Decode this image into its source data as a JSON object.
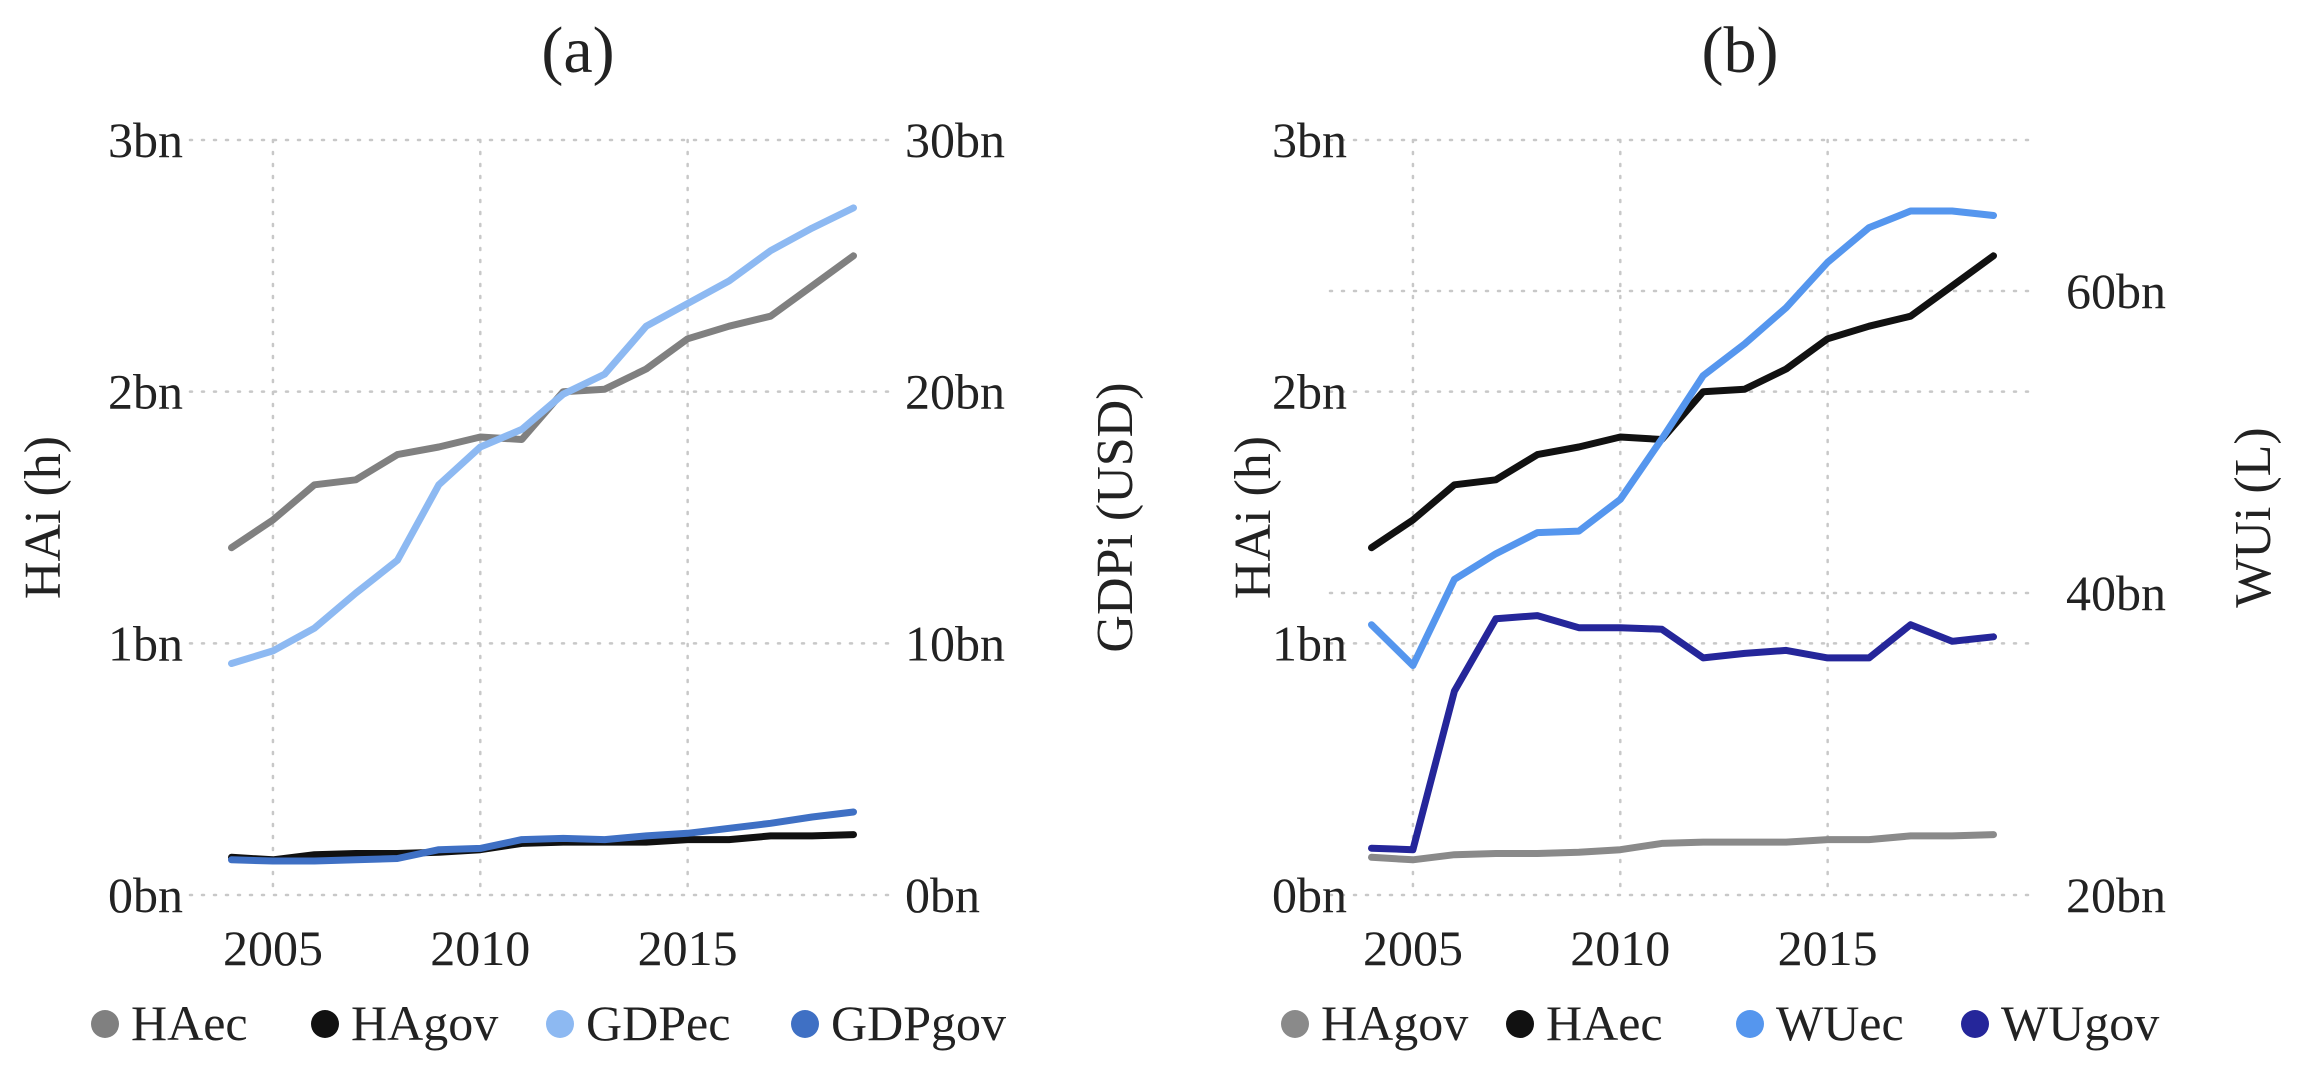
{
  "chart_data": [
    {
      "type": "line",
      "title": "(a)",
      "x": [
        2004,
        2005,
        2006,
        2007,
        2008,
        2009,
        2010,
        2011,
        2012,
        2013,
        2014,
        2015,
        2016,
        2017,
        2018,
        2019
      ],
      "xticks": [
        2005,
        2010,
        2015
      ],
      "xtick_labels": [
        "2005",
        "2010",
        "2015"
      ],
      "xlim": [
        2003,
        2020
      ],
      "ylabel": "HAi (h)",
      "ylim": [
        0,
        3
      ],
      "yticks": [
        0,
        1,
        2,
        3
      ],
      "ytick_labels": [
        "0bn",
        "1bn",
        "2bn",
        "3bn"
      ],
      "y2label": "GDPi (USD)",
      "y2lim": [
        0,
        30
      ],
      "y2ticks": [
        0,
        10,
        20,
        30
      ],
      "y2tick_labels": [
        "0bn",
        "10bn",
        "20bn",
        "30bn"
      ],
      "grid": true,
      "legend_position": "bottom",
      "series": [
        {
          "name": "HAec",
          "axis": "left",
          "color": "#808080",
          "values": [
            1.38,
            1.49,
            1.63,
            1.65,
            1.75,
            1.78,
            1.82,
            1.81,
            2.0,
            2.01,
            2.09,
            2.21,
            2.26,
            2.3,
            2.42,
            2.54
          ]
        },
        {
          "name": "HAgov",
          "axis": "left",
          "color": "#111111",
          "values": [
            0.15,
            0.14,
            0.16,
            0.165,
            0.165,
            0.17,
            0.18,
            0.205,
            0.21,
            0.21,
            0.21,
            0.22,
            0.22,
            0.235,
            0.235,
            0.24
          ]
        },
        {
          "name": "GDPec",
          "axis": "right",
          "color": "#8db9f2",
          "values": [
            9.2,
            9.7,
            10.6,
            12.0,
            13.3,
            16.3,
            17.8,
            18.5,
            19.9,
            20.7,
            22.6,
            23.5,
            24.4,
            25.6,
            26.5,
            27.3
          ]
        },
        {
          "name": "GDPgov",
          "axis": "right",
          "color": "#3f70c4",
          "values": [
            1.4,
            1.35,
            1.35,
            1.4,
            1.45,
            1.8,
            1.85,
            2.2,
            2.25,
            2.2,
            2.35,
            2.45,
            2.65,
            2.85,
            3.1,
            3.3
          ]
        }
      ]
    },
    {
      "type": "line",
      "title": "(b)",
      "x": [
        2004,
        2005,
        2006,
        2007,
        2008,
        2009,
        2010,
        2011,
        2012,
        2013,
        2014,
        2015,
        2016,
        2017,
        2018,
        2019
      ],
      "xticks": [
        2005,
        2010,
        2015
      ],
      "xtick_labels": [
        "2005",
        "2010",
        "2015"
      ],
      "xlim": [
        2003,
        2020
      ],
      "ylabel": "HAi (h)",
      "ylim": [
        0,
        3
      ],
      "yticks": [
        0,
        1,
        2,
        3
      ],
      "ytick_labels": [
        "0bn",
        "1bn",
        "2bn",
        "3bn"
      ],
      "y2label": "WUi (L)",
      "y2lim": [
        20,
        70
      ],
      "y2ticks": [
        20,
        40,
        60
      ],
      "y2tick_labels": [
        "20bn",
        "40bn",
        "60bn"
      ],
      "grid": true,
      "legend_position": "bottom",
      "series": [
        {
          "name": "HAgov",
          "axis": "left",
          "color": "#8a8a8a",
          "values": [
            0.15,
            0.14,
            0.16,
            0.165,
            0.165,
            0.17,
            0.18,
            0.205,
            0.21,
            0.21,
            0.21,
            0.22,
            0.22,
            0.235,
            0.235,
            0.24
          ]
        },
        {
          "name": "HAec",
          "axis": "left",
          "color": "#111111",
          "values": [
            1.38,
            1.49,
            1.63,
            1.65,
            1.75,
            1.78,
            1.82,
            1.81,
            2.0,
            2.01,
            2.09,
            2.21,
            2.26,
            2.3,
            2.42,
            2.54
          ]
        },
        {
          "name": "WUec",
          "axis": "right",
          "color": "#5596ee",
          "values": [
            37.9,
            35.2,
            40.9,
            42.6,
            44.0,
            44.1,
            46.2,
            50.2,
            54.4,
            56.5,
            58.9,
            61.9,
            64.2,
            65.3,
            65.3,
            65.0
          ]
        },
        {
          "name": "WUgov",
          "axis": "right",
          "color": "#25269a",
          "values": [
            23.1,
            23.0,
            33.5,
            38.3,
            38.5,
            37.7,
            37.7,
            37.6,
            35.7,
            36.0,
            36.2,
            35.7,
            35.7,
            37.9,
            36.8,
            37.1
          ]
        }
      ]
    }
  ]
}
